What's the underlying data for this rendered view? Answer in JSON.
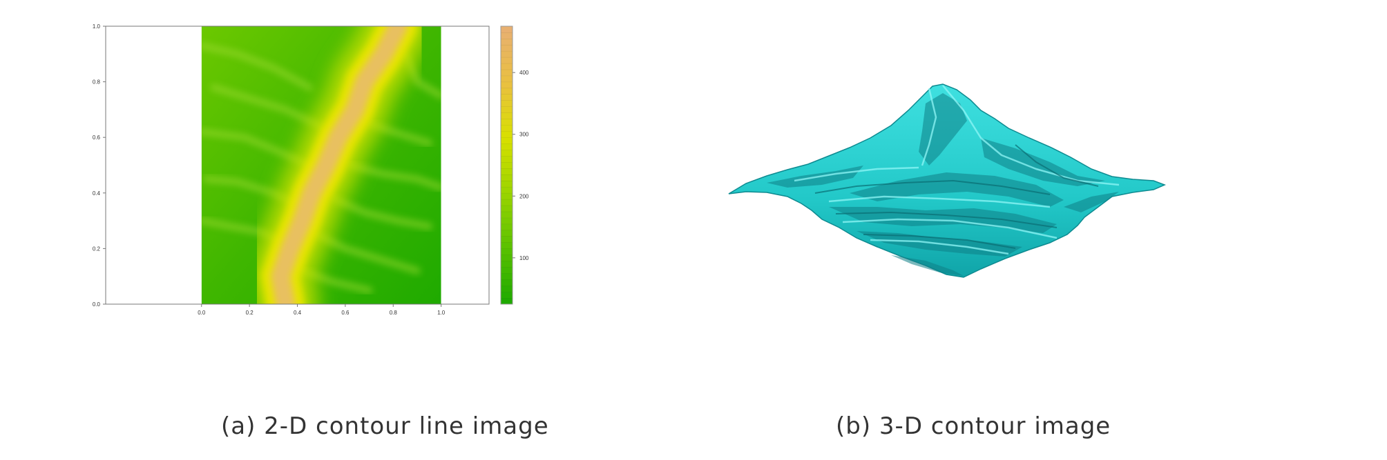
{
  "panels": {
    "a": {
      "caption": "(a) 2-D contour line image"
    },
    "b": {
      "caption": "(b) 3-D contour image"
    }
  },
  "colors": {
    "low": "#1faa00",
    "mid": "#8fd100",
    "high_yellow": "#e8e800",
    "peak": "#e8b070",
    "surface": "#22c8c8",
    "surface_shadow": "#0e7f86",
    "axis": "#555555"
  },
  "chart_data": [
    {
      "type": "heatmap",
      "title": "",
      "xlabel": "",
      "ylabel": "",
      "x_ticks": [
        "0.0",
        "0.2",
        "0.4",
        "0.6",
        "0.8",
        "1.0"
      ],
      "y_ticks": [
        "0.0",
        "0.2",
        "0.4",
        "0.6",
        "0.8",
        "1.0"
      ],
      "xlim": [
        -0.4,
        1.2
      ],
      "ylim": [
        0,
        1
      ],
      "data_extent_x": [
        0,
        1
      ],
      "data_extent_y": [
        0,
        1
      ],
      "colorbar": {
        "ticks": [
          100,
          200,
          300,
          400
        ],
        "range": [
          25,
          475
        ],
        "palette": [
          "#1faa00",
          "#5cc200",
          "#9bd400",
          "#d8e000",
          "#e9c040",
          "#e8b070"
        ]
      },
      "ridge_path": [
        {
          "x": 0.35,
          "y": 0.0
        },
        {
          "x": 0.33,
          "y": 0.1
        },
        {
          "x": 0.37,
          "y": 0.2
        },
        {
          "x": 0.42,
          "y": 0.3
        },
        {
          "x": 0.46,
          "y": 0.4
        },
        {
          "x": 0.52,
          "y": 0.5
        },
        {
          "x": 0.57,
          "y": 0.6
        },
        {
          "x": 0.64,
          "y": 0.7
        },
        {
          "x": 0.68,
          "y": 0.8
        },
        {
          "x": 0.76,
          "y": 0.9
        },
        {
          "x": 0.82,
          "y": 1.0
        }
      ]
    },
    {
      "type": "surface3d",
      "title": "",
      "note": "3-D rendered terrain surface of the same data"
    }
  ]
}
